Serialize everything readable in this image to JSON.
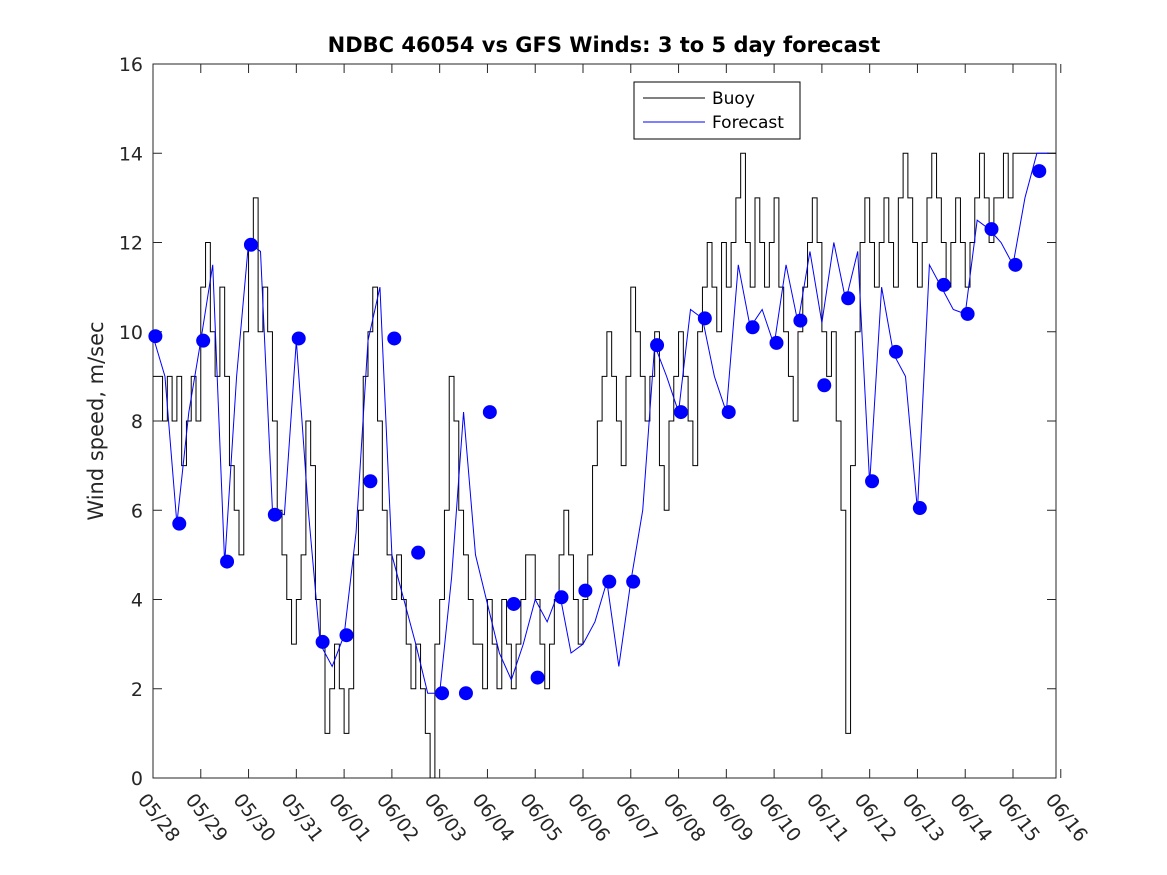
{
  "chart_data": {
    "type": "line",
    "title": "NDBC 46054 vs GFS Winds: 3 to 5 day forecast",
    "xlabel": "",
    "ylabel": "Wind speed, m/sec",
    "ylim": [
      0,
      16
    ],
    "yticks": [
      "0",
      "2",
      "4",
      "6",
      "8",
      "10",
      "12",
      "14",
      "16"
    ],
    "xlim": [
      0,
      18.9
    ],
    "xticks": [
      "05/28",
      "05/29",
      "05/30",
      "05/31",
      "06/01",
      "06/02",
      "06/03",
      "06/04",
      "06/05",
      "06/06",
      "06/07",
      "06/08",
      "06/09",
      "06/10",
      "06/11",
      "06/12",
      "06/13",
      "06/14",
      "06/15",
      "06/16"
    ],
    "grid": false,
    "legend_position": "top-center",
    "colors": {
      "buoy": "#000000",
      "forecast": "#0000ff",
      "markers": "#0000ff"
    },
    "series": [
      {
        "name": "Buoy",
        "color": "#000000",
        "x": [
          0.0,
          0.1,
          0.2,
          0.3,
          0.4,
          0.5,
          0.6,
          0.7,
          0.8,
          0.9,
          1.0,
          1.1,
          1.2,
          1.3,
          1.4,
          1.5,
          1.6,
          1.7,
          1.8,
          1.9,
          2.0,
          2.1,
          2.2,
          2.3,
          2.4,
          2.5,
          2.6,
          2.7,
          2.8,
          2.9,
          3.0,
          3.1,
          3.2,
          3.3,
          3.4,
          3.5,
          3.6,
          3.7,
          3.8,
          3.9,
          4.0,
          4.1,
          4.2,
          4.3,
          4.4,
          4.5,
          4.6,
          4.7,
          4.8,
          4.9,
          5.0,
          5.1,
          5.2,
          5.3,
          5.4,
          5.5,
          5.6,
          5.7,
          5.8,
          5.9,
          6.0,
          6.1,
          6.2,
          6.3,
          6.4,
          6.5,
          6.6,
          6.7,
          6.8,
          6.9,
          7.0,
          7.1,
          7.2,
          7.3,
          7.4,
          7.5,
          7.6,
          7.7,
          7.8,
          7.9,
          8.0,
          8.1,
          8.2,
          8.3,
          8.4,
          8.5,
          8.6,
          8.7,
          8.8,
          8.9,
          9.0,
          9.1,
          9.2,
          9.3,
          9.4,
          9.5,
          9.6,
          9.7,
          9.8,
          9.9,
          10.0,
          10.1,
          10.2,
          10.3,
          10.4,
          10.5,
          10.6,
          10.7,
          10.8,
          10.9,
          11.0,
          11.1,
          11.2,
          11.3,
          11.4,
          11.5,
          11.6,
          11.7,
          11.8,
          11.9,
          12.0,
          12.1,
          12.2,
          12.3,
          12.4,
          12.5,
          12.6,
          12.7,
          12.8,
          12.9,
          13.0,
          13.1,
          13.2,
          13.3,
          13.4,
          13.5,
          13.6,
          13.7,
          13.8,
          13.9,
          14.0,
          14.1,
          14.2,
          14.3,
          14.4,
          14.5,
          14.6,
          14.7,
          14.8,
          14.9,
          15.0,
          15.1,
          15.2,
          15.3,
          15.4,
          15.5,
          15.6,
          15.7,
          15.8,
          15.9,
          16.0,
          16.1,
          16.2,
          16.3,
          16.4,
          16.5,
          16.6,
          16.7,
          16.8,
          16.9,
          17.0,
          17.1,
          17.2,
          17.3,
          17.4,
          17.5,
          17.6,
          17.7,
          17.8,
          17.9,
          18.0,
          18.1,
          18.2,
          18.3,
          18.4,
          18.5,
          18.6,
          18.7,
          18.8,
          18.9
        ],
        "values": [
          9,
          9,
          8,
          9,
          8,
          9,
          7,
          8,
          9,
          8,
          11,
          12,
          10,
          9,
          11,
          9,
          7,
          6,
          5,
          10,
          12,
          13,
          10,
          11,
          10,
          8,
          6,
          5,
          4,
          3,
          4,
          5,
          8,
          7,
          4,
          3,
          1,
          2,
          3,
          2,
          1,
          2,
          5,
          6,
          9,
          10,
          11,
          8,
          6,
          5,
          4,
          5,
          4,
          3,
          2,
          3,
          2,
          1,
          0,
          3,
          4,
          6,
          9,
          8,
          6,
          5,
          4,
          3,
          3,
          2,
          4,
          3,
          2,
          4,
          3,
          2,
          3,
          4,
          5,
          5,
          4,
          3,
          2,
          3,
          4,
          5,
          6,
          5,
          4,
          3,
          4,
          5,
          7,
          8,
          9,
          10,
          9,
          8,
          7,
          9,
          11,
          10,
          9,
          8,
          9,
          10,
          7,
          6,
          8,
          9,
          10,
          9,
          8,
          7,
          10,
          11,
          12,
          11,
          10,
          12,
          11,
          12,
          13,
          14,
          12,
          11,
          13,
          12,
          11,
          12,
          13,
          11,
          10,
          9,
          8,
          10,
          11,
          12,
          13,
          12,
          10,
          9,
          10,
          8,
          6,
          1,
          7,
          10,
          12,
          13,
          12,
          11,
          12,
          13,
          12,
          11,
          13,
          14,
          13,
          12,
          11,
          12,
          13,
          14,
          13,
          12,
          11,
          12,
          13,
          12,
          11,
          12,
          13,
          14,
          13,
          12,
          13,
          13,
          14,
          13,
          14,
          14,
          14,
          14,
          14,
          14,
          14,
          14,
          14,
          14
        ]
      },
      {
        "name": "Forecast",
        "color": "#0000ff",
        "x": [
          0.0,
          0.25,
          0.5,
          0.75,
          1.0,
          1.25,
          1.5,
          1.75,
          2.0,
          2.25,
          2.5,
          2.75,
          3.0,
          3.25,
          3.5,
          3.75,
          4.0,
          4.25,
          4.5,
          4.75,
          5.0,
          5.25,
          5.5,
          5.75,
          6.0,
          6.25,
          6.5,
          6.75,
          7.0,
          7.25,
          7.5,
          7.75,
          8.0,
          8.25,
          8.5,
          8.75,
          9.0,
          9.25,
          9.5,
          9.75,
          10.0,
          10.25,
          10.5,
          10.75,
          11.0,
          11.25,
          11.5,
          11.75,
          12.0,
          12.25,
          12.5,
          12.75,
          13.0,
          13.25,
          13.5,
          13.75,
          14.0,
          14.25,
          14.5,
          14.75,
          15.0,
          15.25,
          15.5,
          15.75,
          16.0,
          16.25,
          16.5,
          16.75,
          17.0,
          17.25,
          17.5,
          17.75,
          18.0,
          18.25,
          18.5,
          18.75
        ],
        "values": [
          9.9,
          9.0,
          5.7,
          8.2,
          9.8,
          11.5,
          4.8,
          9.0,
          12.0,
          11.8,
          6.0,
          5.9,
          9.8,
          6.0,
          3.0,
          2.5,
          3.2,
          5.5,
          9.8,
          11.0,
          5.0,
          4.0,
          3.0,
          1.9,
          1.9,
          4.5,
          8.2,
          5.0,
          3.9,
          2.8,
          2.2,
          3.0,
          4.0,
          3.5,
          4.2,
          2.8,
          3.0,
          3.5,
          4.4,
          2.5,
          4.4,
          6.0,
          9.7,
          9.0,
          8.2,
          10.5,
          10.3,
          9.0,
          8.2,
          11.5,
          10.1,
          10.5,
          9.7,
          11.5,
          10.2,
          11.8,
          10.2,
          12.0,
          10.7,
          11.8,
          6.6,
          11.0,
          9.5,
          9.0,
          6.0,
          11.5,
          11.0,
          10.5,
          10.4,
          12.5,
          12.3,
          12.0,
          11.5,
          13.0,
          14.0,
          14.0
        ]
      }
    ],
    "markers": {
      "color": "#0000ff",
      "x": [
        0.05,
        0.55,
        1.05,
        1.55,
        2.05,
        2.55,
        3.05,
        3.55,
        4.05,
        4.55,
        5.05,
        5.55,
        6.05,
        6.55,
        7.05,
        7.55,
        8.05,
        8.55,
        9.05,
        9.55,
        10.05,
        10.55,
        11.05,
        11.55,
        12.05,
        12.55,
        13.05,
        13.55,
        14.05,
        14.55,
        15.05,
        15.55,
        16.05,
        16.55,
        17.05,
        17.55,
        18.05,
        18.55
      ],
      "values": [
        9.9,
        5.7,
        9.8,
        4.85,
        11.95,
        5.9,
        9.85,
        3.05,
        3.2,
        6.65,
        9.85,
        5.05,
        1.9,
        1.9,
        8.2,
        3.9,
        2.25,
        4.05,
        4.2,
        4.4,
        4.4,
        9.7,
        8.2,
        10.3,
        8.2,
        10.1,
        9.75,
        10.25,
        8.8,
        10.75,
        6.65,
        9.55,
        6.05,
        11.05,
        10.4,
        12.3,
        11.5,
        13.6
      ]
    }
  }
}
